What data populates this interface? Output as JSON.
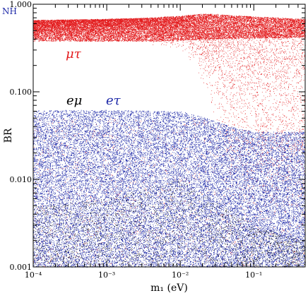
{
  "chart_data": {
    "type": "scatter",
    "title": "",
    "corner_label": "NH",
    "xlabel": "m₁ (eV)",
    "ylabel": "BR",
    "x_scale": "log",
    "y_scale": "log",
    "xlim": [
      0.0001,
      0.5
    ],
    "ylim": [
      0.001,
      1.0
    ],
    "x_ticks": [
      {
        "value": 0.0001,
        "label": "10⁻⁴"
      },
      {
        "value": 0.001,
        "label": "10⁻³"
      },
      {
        "value": 0.01,
        "label": "10⁻²"
      },
      {
        "value": 0.1,
        "label": "10⁻¹"
      }
    ],
    "y_ticks": [
      {
        "value": 0.001,
        "label": "0.001"
      },
      {
        "value": 0.01,
        "label": "0.010"
      },
      {
        "value": 0.1,
        "label": "0.100"
      },
      {
        "value": 1.0,
        "label": "1.000"
      }
    ],
    "grid": false,
    "colors": {
      "mutau": "#e31a1c",
      "etau": "#1f2aa8",
      "emu": "#000000",
      "corner": "#1f2aa8"
    },
    "series": [
      {
        "name": "μτ",
        "color": "#e31a1c",
        "band": [
          {
            "x": 0.0001,
            "low": 0.38,
            "high": 0.66
          },
          {
            "x": 0.001,
            "low": 0.38,
            "high": 0.68
          },
          {
            "x": 0.003,
            "low": 0.36,
            "high": 0.7
          },
          {
            "x": 0.01,
            "low": 0.28,
            "high": 0.74
          },
          {
            "x": 0.02,
            "low": 0.12,
            "high": 0.78
          },
          {
            "x": 0.03,
            "low": 0.03,
            "high": 0.78
          },
          {
            "x": 0.05,
            "low": 0.005,
            "high": 0.74
          },
          {
            "x": 0.1,
            "low": 0.002,
            "high": 0.71
          },
          {
            "x": 0.5,
            "low": 0.001,
            "high": 0.68
          }
        ]
      },
      {
        "name": "eτ",
        "color": "#1f2aa8",
        "band": [
          {
            "x": 0.0001,
            "low": 0.001,
            "high": 0.062
          },
          {
            "x": 0.001,
            "low": 0.001,
            "high": 0.062
          },
          {
            "x": 0.01,
            "low": 0.001,
            "high": 0.06
          },
          {
            "x": 0.02,
            "low": 0.001,
            "high": 0.052
          },
          {
            "x": 0.05,
            "low": 0.001,
            "high": 0.04
          },
          {
            "x": 0.1,
            "low": 0.001,
            "high": 0.035
          },
          {
            "x": 0.5,
            "low": 0.001,
            "high": 0.035
          }
        ]
      },
      {
        "name": "eμ",
        "color": "#000000",
        "band": [
          {
            "x": 0.0001,
            "low": 0.001,
            "high": 0.005
          },
          {
            "x": 0.001,
            "low": 0.001,
            "high": 0.006
          },
          {
            "x": 0.01,
            "low": 0.001,
            "high": 0.01
          },
          {
            "x": 0.1,
            "low": 0.001,
            "high": 0.003
          },
          {
            "x": 0.5,
            "low": 0.001,
            "high": 0.002
          }
        ]
      }
    ]
  }
}
